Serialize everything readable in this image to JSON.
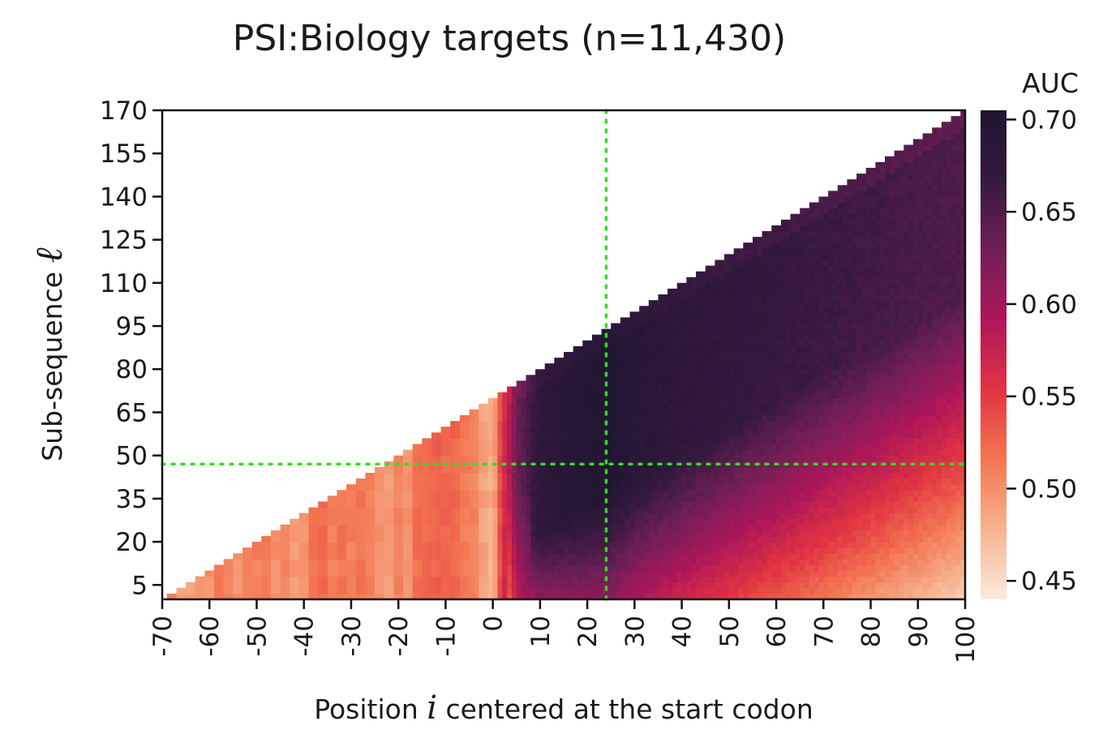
{
  "chart_data": {
    "type": "heatmap",
    "title": "PSI:Biology targets (n=11,430)",
    "xlabel": {
      "before": "Position ",
      "symbol": "i",
      "after": " centered at the start codon"
    },
    "ylabel": {
      "before": "Sub-sequence ",
      "symbol": "ℓ"
    },
    "x_range": [
      -70,
      100
    ],
    "y_range": [
      0,
      170
    ],
    "x_ticks": [
      -70,
      -60,
      -50,
      -40,
      -30,
      -20,
      -10,
      0,
      10,
      20,
      30,
      40,
      50,
      60,
      70,
      80,
      90,
      100
    ],
    "x_tick_labels": [
      "-70",
      "-60",
      "-50",
      "-40",
      "-30",
      "-20",
      "-10",
      "0",
      "10",
      "20",
      "30",
      "40",
      "50",
      "60",
      "70",
      "80",
      "90",
      "100"
    ],
    "y_ticks": [
      5,
      20,
      35,
      50,
      65,
      80,
      95,
      110,
      125,
      140,
      155,
      170
    ],
    "y_tick_labels": [
      "5",
      "20",
      "35",
      "50",
      "65",
      "80",
      "95",
      "110",
      "125",
      "140",
      "155",
      "170"
    ],
    "colorbar": {
      "title": "AUC",
      "range": [
        0.44,
        0.705
      ],
      "ticks": [
        0.45,
        0.5,
        0.55,
        0.6,
        0.65,
        0.7
      ],
      "tick_labels": [
        "0.45",
        "0.50",
        "0.55",
        "0.60",
        "0.65",
        "0.70"
      ],
      "colormap": "rocket_r",
      "stops": [
        "#faebdd",
        "#f6b48f",
        "#f37651",
        "#e13342",
        "#ad1759",
        "#701f57",
        "#35193e",
        "#1e1531"
      ]
    },
    "region": "lower-left triangle masked; valid where ℓ ≤ i + 70",
    "column_profile": [
      {
        "x": -70,
        "auc": 0.5
      },
      {
        "x": -60,
        "auc": 0.51
      },
      {
        "x": -50,
        "auc": 0.51
      },
      {
        "x": -40,
        "auc": 0.505
      },
      {
        "x": -30,
        "auc": 0.51
      },
      {
        "x": -20,
        "auc": 0.5
      },
      {
        "x": -10,
        "auc": 0.52
      },
      {
        "x": 0,
        "auc": 0.49
      },
      {
        "x": 2,
        "auc": 0.545
      },
      {
        "x": 5,
        "auc": 0.63
      },
      {
        "x": 10,
        "auc": 0.68
      },
      {
        "x": 20,
        "auc": 0.695
      },
      {
        "x": 25,
        "auc": 0.7
      },
      {
        "x": 30,
        "auc": 0.69
      },
      {
        "x": 40,
        "auc": 0.68
      },
      {
        "x": 50,
        "auc": 0.675
      },
      {
        "x": 60,
        "auc": 0.67
      },
      {
        "x": 70,
        "auc": 0.665
      },
      {
        "x": 80,
        "auc": 0.66
      },
      {
        "x": 90,
        "auc": 0.655
      },
      {
        "x": 100,
        "auc": 0.65
      }
    ],
    "reference_lines": [
      {
        "orientation": "vertical",
        "x": 24,
        "color": "#33dd22",
        "style": "dotted"
      },
      {
        "orientation": "horizontal",
        "y": 47,
        "color": "#33dd22",
        "style": "dotted"
      }
    ]
  }
}
